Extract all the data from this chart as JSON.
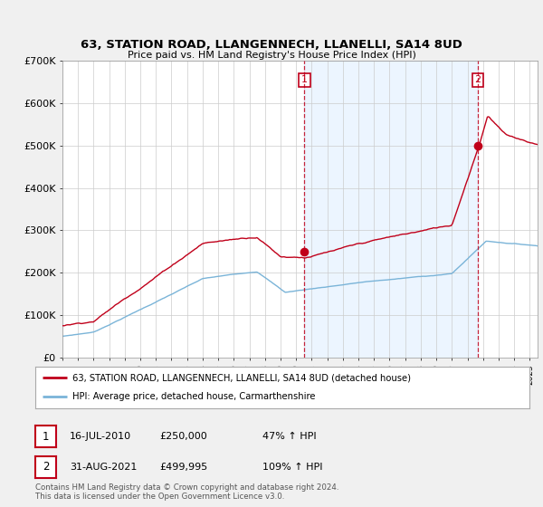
{
  "title": "63, STATION ROAD, LLANGENNECH, LLANELLI, SA14 8UD",
  "subtitle": "Price paid vs. HM Land Registry's House Price Index (HPI)",
  "legend_label_red": "63, STATION ROAD, LLANGENNECH, LLANELLI, SA14 8UD (detached house)",
  "legend_label_blue": "HPI: Average price, detached house, Carmarthenshire",
  "transaction1_label": "1",
  "transaction1_date": "16-JUL-2010",
  "transaction1_price": "£250,000",
  "transaction1_hpi": "47% ↑ HPI",
  "transaction2_label": "2",
  "transaction2_date": "31-AUG-2021",
  "transaction2_price": "£499,995",
  "transaction2_hpi": "109% ↑ HPI",
  "footer": "Contains HM Land Registry data © Crown copyright and database right 2024.\nThis data is licensed under the Open Government Licence v3.0.",
  "ylim": [
    0,
    700000
  ],
  "yticks": [
    0,
    100000,
    200000,
    300000,
    400000,
    500000,
    600000,
    700000
  ],
  "ytick_labels": [
    "£0",
    "£100K",
    "£200K",
    "£300K",
    "£400K",
    "£500K",
    "£600K",
    "£700K"
  ],
  "color_red": "#c0001a",
  "color_blue": "#7ab4d8",
  "color_shade": "#ddeeff",
  "background_color": "#f0f0f0",
  "plot_bg_color": "#ffffff",
  "marker1_x": 2010.54,
  "marker1_y": 250000,
  "marker2_x": 2021.67,
  "marker2_y": 499995,
  "xmin": 1995,
  "xmax": 2025.5
}
